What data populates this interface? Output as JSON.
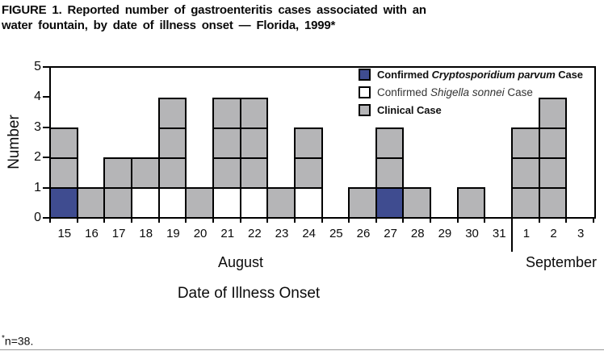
{
  "title": {
    "line1": "FIGURE 1. Reported number of gastroenteritis cases associated with an",
    "line2": "water fountain, by date of illness onset — Florida, 1999*"
  },
  "y_axis": {
    "label": "Number",
    "ticks": [
      "0",
      "1",
      "2",
      "3",
      "4",
      "5"
    ]
  },
  "x_axis": {
    "title": "Date of Illness Onset",
    "month_labels": [
      "August",
      "September"
    ],
    "day_labels": [
      "15",
      "16",
      "17",
      "18",
      "19",
      "20",
      "21",
      "22",
      "23",
      "24",
      "25",
      "26",
      "27",
      "28",
      "29",
      "30",
      "31",
      "1",
      "2",
      "3"
    ]
  },
  "legend": [
    {
      "prefix": "Confirmed ",
      "italic": "Cryptosporidium parvum",
      "suffix": " Case",
      "style": "bold"
    },
    {
      "prefix": "Confirmed ",
      "italic": "Shigella sonnei",
      "suffix": " Case",
      "style": "regular"
    },
    {
      "prefix": "Clinical Case",
      "italic": "",
      "suffix": "",
      "style": "bold"
    }
  ],
  "footnote": {
    "sup": "*",
    "text": "n=38."
  },
  "colors": {
    "crypto_blue": "#3F4C90",
    "shigella_white": "#FFFFFF",
    "clinical_gray": "#B5B5B7",
    "line_black": "#000000"
  },
  "chart_data": {
    "type": "bar",
    "subtype": "stacked-unit-case-epi-curve",
    "title": "Reported number of gastroenteritis cases associated with an water fountain, by date of illness onset — Florida, 1999",
    "xlabel": "Date of Illness Onset",
    "ylabel": "Number",
    "ylim": [
      0,
      5
    ],
    "grid": false,
    "legend_position": "top-right-inside",
    "total_n": 38,
    "categories": [
      "Aug 15",
      "Aug 16",
      "Aug 17",
      "Aug 18",
      "Aug 19",
      "Aug 20",
      "Aug 21",
      "Aug 22",
      "Aug 23",
      "Aug 24",
      "Aug 25",
      "Aug 26",
      "Aug 27",
      "Aug 28",
      "Aug 29",
      "Aug 30",
      "Aug 31",
      "Sep 1",
      "Sep 2",
      "Sep 3"
    ],
    "x_groups": [
      {
        "label": "August",
        "days": 17
      },
      {
        "label": "September",
        "days": 3
      }
    ],
    "series": [
      {
        "name": "Confirmed Cryptosporidium parvum Case",
        "color": "#3F4C90",
        "values": [
          1,
          0,
          0,
          0,
          0,
          0,
          0,
          0,
          0,
          0,
          0,
          0,
          1,
          0,
          0,
          0,
          0,
          0,
          0,
          0
        ]
      },
      {
        "name": "Confirmed Shigella sonnei Case",
        "color": "#FFFFFF",
        "values": [
          0,
          0,
          0,
          1,
          1,
          0,
          1,
          1,
          0,
          1,
          0,
          0,
          0,
          0,
          0,
          0,
          0,
          0,
          0,
          0
        ]
      },
      {
        "name": "Clinical Case",
        "color": "#B5B5B7",
        "values": [
          2,
          1,
          2,
          1,
          3,
          1,
          3,
          3,
          1,
          2,
          0,
          1,
          2,
          1,
          0,
          1,
          0,
          3,
          4,
          0
        ]
      }
    ],
    "totals_per_day": [
      3,
      1,
      2,
      2,
      4,
      1,
      4,
      4,
      1,
      3,
      0,
      1,
      3,
      1,
      0,
      1,
      0,
      3,
      4,
      0
    ]
  }
}
